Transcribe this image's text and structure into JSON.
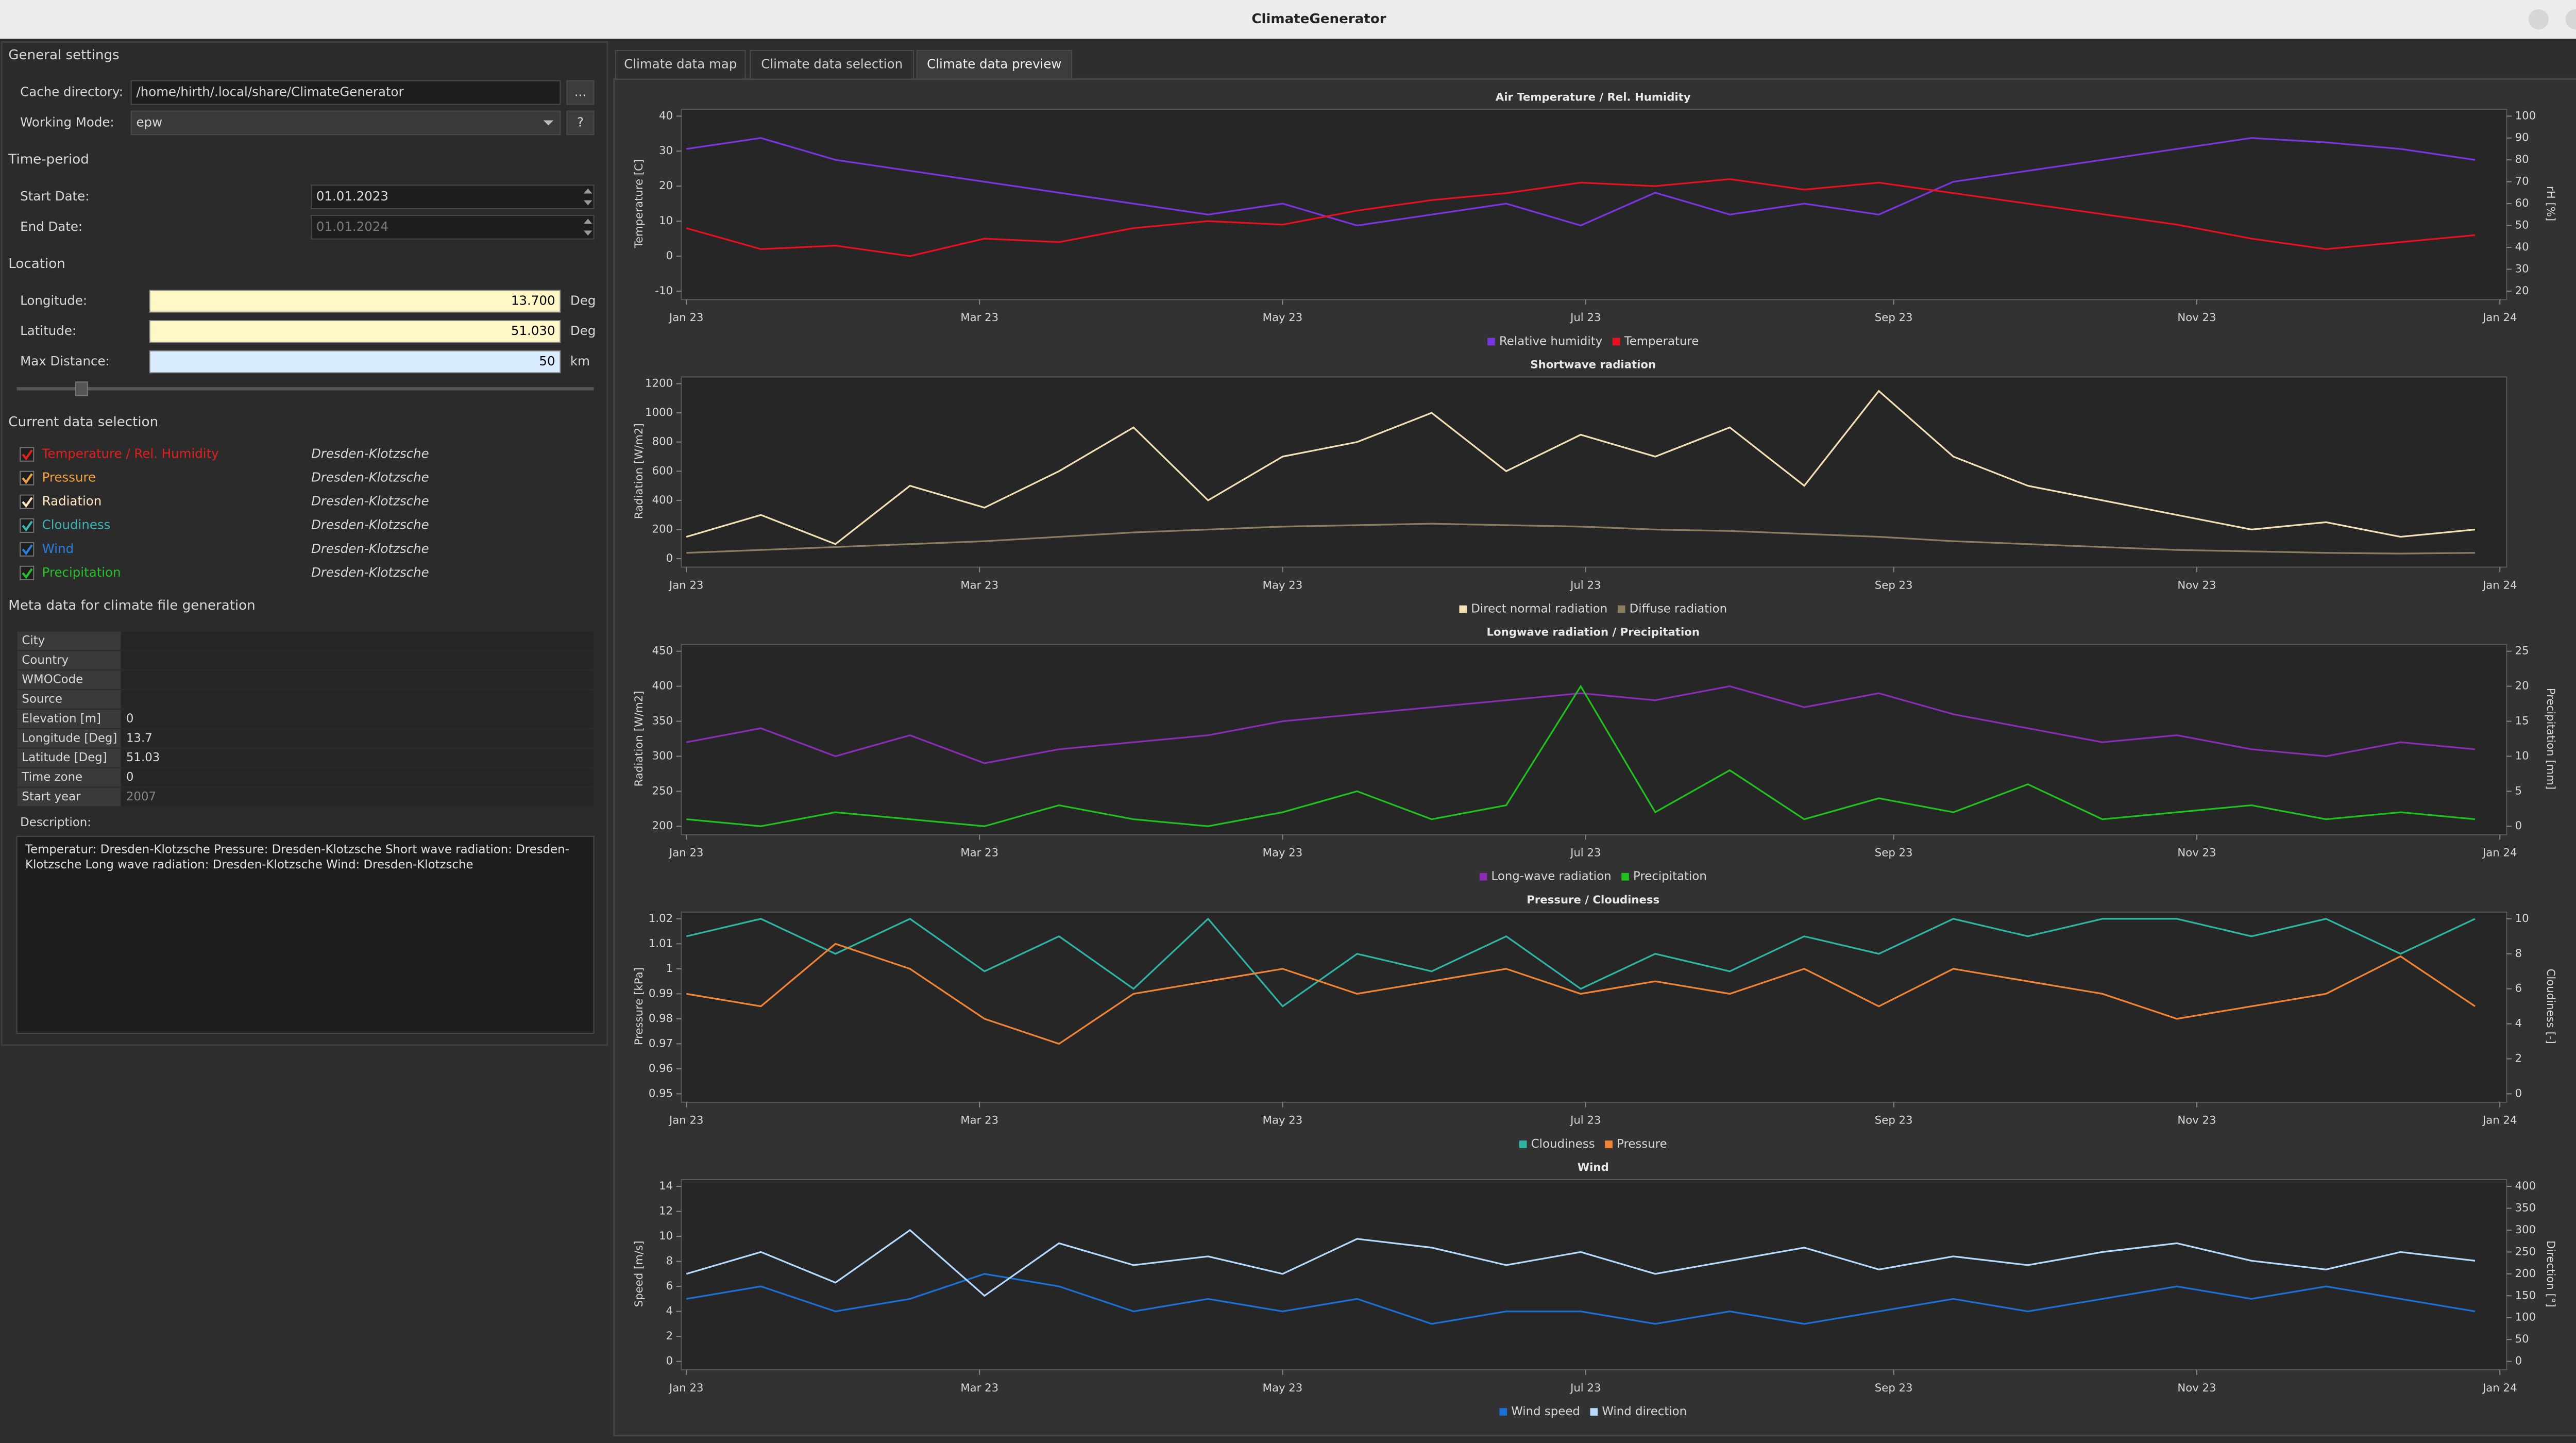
{
  "window_title": "ClimateGenerator",
  "settings": {
    "general": {
      "title": "General settings",
      "fields": [
        {
          "label": "Cache directory:",
          "value": "/home/hirth/.local/share/ClimateGenerator",
          "button": "..."
        },
        {
          "label": "Working Mode:",
          "value": "epw",
          "button": "?"
        }
      ]
    },
    "time_period": {
      "title": "Time-period",
      "fields": [
        {
          "label": "Start Date:",
          "value": "01.01.2023"
        },
        {
          "label": "End Date:",
          "value": "01.01.2024"
        }
      ]
    },
    "location": {
      "title": "Location",
      "fields": [
        {
          "label": "Longitude:",
          "value": "13.700",
          "unit": "Deg"
        },
        {
          "label": "Latitude:",
          "value": "51.030",
          "unit": "Deg"
        },
        {
          "label": "Max Distance:",
          "value": "50",
          "unit": "km"
        }
      ]
    },
    "data_selection": {
      "title": "Current data selection",
      "items": [
        {
          "name": "Temperature / Rel. Humidity",
          "station": "Dresden-Klotzsche",
          "color": "#e0201e"
        },
        {
          "name": "Pressure",
          "station": "Dresden-Klotzsche",
          "color": "#f0a040"
        },
        {
          "name": "Radiation",
          "station": "Dresden-Klotzsche",
          "color": "#ffe6c0"
        },
        {
          "name": "Cloudiness",
          "station": "Dresden-Klotzsche",
          "color": "#3cb4b4"
        },
        {
          "name": "Wind",
          "station": "Dresden-Klotzsche",
          "color": "#2a80e0"
        },
        {
          "name": "Precipitation",
          "station": "Dresden-Klotzsche",
          "color": "#28c028"
        }
      ]
    },
    "meta_data": {
      "title": "Meta data for climate file generation",
      "rows": [
        {
          "label": "City"
        },
        {
          "label": "Country"
        },
        {
          "label": "WMOCode"
        },
        {
          "label": "Source"
        },
        {
          "label": "Elevation [m]",
          "value": "0"
        },
        {
          "label": "Longitude [Deg]",
          "value": "13.7"
        },
        {
          "label": "Latitude [Deg]",
          "value": "51.03"
        },
        {
          "label": "Time zone",
          "value": "0"
        },
        {
          "label": "Start year",
          "value": "2007"
        }
      ],
      "description_label": "Description:",
      "description": "Temperatur: Dresden-Klotzsche Pressure: Dresden-Klotzsche Short wave radiation: Dresden-Klotzsche Long wave radiation: Dresden-Klotzsche Wind: Dresden-Klotzsche"
    }
  },
  "tabs": [
    "Climate data map",
    "Climate data selection",
    "Climate data preview"
  ],
  "chart_data": [
    {
      "type": "line",
      "title": "Air Temperature / Rel. Humidity",
      "ylabel": "Temperature [C]",
      "y2label": "rH [%]",
      "x": [
        0,
        15,
        30,
        45,
        60,
        75,
        90,
        105,
        120,
        135,
        150,
        165,
        180,
        195,
        210,
        225,
        240,
        255,
        270,
        285,
        300,
        315,
        330,
        345,
        360
      ],
      "xlim": [
        0,
        365
      ],
      "xticks": [
        {
          "value": 0,
          "label": "Jan 23"
        },
        {
          "value": 59,
          "label": "Mar 23"
        },
        {
          "value": 120,
          "label": "May 23"
        },
        {
          "value": 181,
          "label": "Jul 23"
        },
        {
          "value": 243,
          "label": "Sep 23"
        },
        {
          "value": 304,
          "label": "Nov 23"
        },
        {
          "value": 365,
          "label": "Jan 24"
        }
      ],
      "ylim": [
        -10,
        40
      ],
      "yticks": [
        -10,
        0,
        10,
        20,
        30,
        40
      ],
      "y2lim": [
        20,
        100
      ],
      "y2ticks": [
        20,
        30,
        40,
        50,
        60,
        70,
        80,
        90,
        100
      ],
      "series": [
        {
          "name": "Relative humidity",
          "color": "#7b35e0",
          "axis": "y2",
          "values": [
            85,
            90,
            80,
            75,
            70,
            65,
            60,
            55,
            60,
            50,
            55,
            60,
            50,
            65,
            55,
            60,
            55,
            70,
            75,
            80,
            85,
            90,
            88,
            85,
            80
          ]
        },
        {
          "name": "Temperature",
          "color": "#e8101e",
          "values": [
            8,
            2,
            3,
            0,
            5,
            4,
            8,
            10,
            9,
            13,
            16,
            18,
            21,
            20,
            22,
            19,
            21,
            18,
            15,
            12,
            9,
            5,
            2,
            4,
            6
          ]
        }
      ]
    },
    {
      "type": "line",
      "title": "Shortwave radiation",
      "ylabel": "Radiation [W/m2]",
      "x": [
        0,
        15,
        30,
        45,
        60,
        75,
        90,
        105,
        120,
        135,
        150,
        165,
        180,
        195,
        210,
        225,
        240,
        255,
        270,
        285,
        300,
        315,
        330,
        345,
        360
      ],
      "xlim": [
        0,
        365
      ],
      "xticks": [
        {
          "value": 0,
          "label": "Jan 23"
        },
        {
          "value": 59,
          "label": "Mar 23"
        },
        {
          "value": 120,
          "label": "May 23"
        },
        {
          "value": 181,
          "label": "Jul 23"
        },
        {
          "value": 243,
          "label": "Sep 23"
        },
        {
          "value": 304,
          "label": "Nov 23"
        },
        {
          "value": 365,
          "label": "Jan 24"
        }
      ],
      "ylim": [
        0,
        1200
      ],
      "yticks": [
        0,
        200,
        400,
        600,
        800,
        1000,
        1200
      ],
      "series": [
        {
          "name": "Direct normal radiation",
          "color": "#f2dfb4",
          "values": [
            150,
            300,
            100,
            500,
            350,
            600,
            900,
            400,
            700,
            800,
            1000,
            600,
            850,
            700,
            900,
            500,
            1150,
            700,
            500,
            400,
            300,
            200,
            250,
            150,
            200
          ]
        },
        {
          "name": "Diffuse radiation",
          "color": "#8c7c60",
          "values": [
            40,
            60,
            80,
            100,
            120,
            150,
            180,
            200,
            220,
            230,
            240,
            230,
            220,
            200,
            190,
            170,
            150,
            120,
            100,
            80,
            60,
            50,
            40,
            35,
            40
          ]
        }
      ]
    },
    {
      "type": "line",
      "title": "Longwave radiation / Precipitation",
      "ylabel": "Radiation [W/m2]",
      "y2label": "Precipitation [mm]",
      "x": [
        0,
        15,
        30,
        45,
        60,
        75,
        90,
        105,
        120,
        135,
        150,
        165,
        180,
        195,
        210,
        225,
        240,
        255,
        270,
        285,
        300,
        315,
        330,
        345,
        360
      ],
      "xlim": [
        0,
        365
      ],
      "xticks": [
        {
          "value": 0,
          "label": "Jan 23"
        },
        {
          "value": 59,
          "label": "Mar 23"
        },
        {
          "value": 120,
          "label": "May 23"
        },
        {
          "value": 181,
          "label": "Jul 23"
        },
        {
          "value": 243,
          "label": "Sep 23"
        },
        {
          "value": 304,
          "label": "Nov 23"
        },
        {
          "value": 365,
          "label": "Jan 24"
        }
      ],
      "ylim": [
        200,
        450
      ],
      "yticks": [
        200,
        250,
        300,
        350,
        400,
        450
      ],
      "y2lim": [
        0,
        25
      ],
      "y2ticks": [
        0,
        5,
        10,
        15,
        20,
        25
      ],
      "series": [
        {
          "name": "Long-wave radiation",
          "color": "#8a2cb4",
          "values": [
            320,
            340,
            300,
            330,
            290,
            310,
            320,
            330,
            350,
            360,
            370,
            380,
            390,
            380,
            400,
            370,
            390,
            360,
            340,
            320,
            330,
            310,
            300,
            320,
            310
          ]
        },
        {
          "name": "Precipitation",
          "color": "#20c020",
          "axis": "y2",
          "values": [
            1,
            0,
            2,
            1,
            0,
            3,
            1,
            0,
            2,
            5,
            1,
            3,
            20,
            2,
            8,
            1,
            4,
            2,
            6,
            1,
            2,
            3,
            1,
            2,
            1
          ]
        }
      ]
    },
    {
      "type": "line",
      "title": "Pressure / Cloudiness",
      "ylabel": "Pressure [kPa]",
      "y2label": "Cloudiness [-]",
      "x": [
        0,
        15,
        30,
        45,
        60,
        75,
        90,
        105,
        120,
        135,
        150,
        165,
        180,
        195,
        210,
        225,
        240,
        255,
        270,
        285,
        300,
        315,
        330,
        345,
        360
      ],
      "xlim": [
        0,
        365
      ],
      "xticks": [
        {
          "value": 0,
          "label": "Jan 23"
        },
        {
          "value": 59,
          "label": "Mar 23"
        },
        {
          "value": 120,
          "label": "May 23"
        },
        {
          "value": 181,
          "label": "Jul 23"
        },
        {
          "value": 243,
          "label": "Sep 23"
        },
        {
          "value": 304,
          "label": "Nov 23"
        },
        {
          "value": 365,
          "label": "Jan 24"
        }
      ],
      "ylim": [
        0.95,
        1.02
      ],
      "yticks": [
        0.95,
        0.96,
        0.97,
        0.98,
        0.99,
        1,
        1.01,
        1.02
      ],
      "y2lim": [
        0,
        10
      ],
      "y2ticks": [
        0,
        2,
        4,
        6,
        8,
        10
      ],
      "series": [
        {
          "name": "Cloudiness",
          "color": "#2fb4a4",
          "axis": "y2",
          "values": [
            9,
            10,
            8,
            10,
            7,
            9,
            6,
            10,
            5,
            8,
            7,
            9,
            6,
            8,
            7,
            9,
            8,
            10,
            9,
            10,
            10,
            9,
            10,
            8,
            10
          ]
        },
        {
          "name": "Pressure",
          "color": "#f08434",
          "values": [
            0.99,
            0.985,
            1.01,
            1.0,
            0.98,
            0.97,
            0.99,
            0.995,
            1.0,
            0.99,
            0.995,
            1.0,
            0.99,
            0.995,
            0.99,
            1.0,
            0.985,
            1.0,
            0.995,
            0.99,
            0.98,
            0.985,
            0.99,
            1.005,
            0.985
          ]
        }
      ]
    },
    {
      "type": "line",
      "title": "Wind",
      "ylabel": "Speed [m/s]",
      "y2label": "Direction [°]",
      "x": [
        0,
        15,
        30,
        45,
        60,
        75,
        90,
        105,
        120,
        135,
        150,
        165,
        180,
        195,
        210,
        225,
        240,
        255,
        270,
        285,
        300,
        315,
        330,
        345,
        360
      ],
      "xlim": [
        0,
        365
      ],
      "xticks": [
        {
          "value": 0,
          "label": "Jan 23"
        },
        {
          "value": 59,
          "label": "Mar 23"
        },
        {
          "value": 120,
          "label": "May 23"
        },
        {
          "value": 181,
          "label": "Jul 23"
        },
        {
          "value": 243,
          "label": "Sep 23"
        },
        {
          "value": 304,
          "label": "Nov 23"
        },
        {
          "value": 365,
          "label": "Jan 24"
        }
      ],
      "ylim": [
        0,
        14
      ],
      "yticks": [
        0,
        2,
        4,
        6,
        8,
        10,
        12,
        14
      ],
      "y2lim": [
        0,
        400
      ],
      "y2ticks": [
        0,
        50,
        100,
        150,
        200,
        250,
        300,
        350,
        400
      ],
      "series": [
        {
          "name": "Wind speed",
          "color": "#1a70d4",
          "values": [
            5,
            6,
            4,
            5,
            7,
            6,
            4,
            5,
            4,
            5,
            3,
            4,
            4,
            3,
            4,
            3,
            4,
            5,
            4,
            5,
            6,
            5,
            6,
            5,
            4
          ]
        },
        {
          "name": "Wind direction",
          "color": "#b4daff",
          "axis": "y2",
          "values": [
            200,
            250,
            180,
            300,
            150,
            270,
            220,
            240,
            200,
            280,
            260,
            220,
            250,
            200,
            230,
            260,
            210,
            240,
            220,
            250,
            270,
            230,
            210,
            250,
            230
          ]
        }
      ]
    }
  ]
}
